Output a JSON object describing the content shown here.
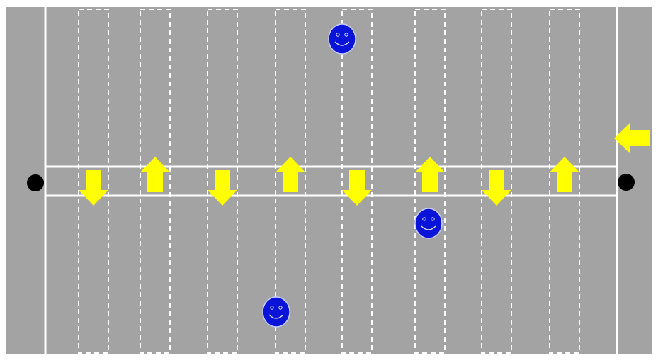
{
  "colors": {
    "background": "#a3a3a3",
    "lines": "#ffffff",
    "arrow": "#ffff00",
    "face": "#0a14d8",
    "dot": "#000000"
  },
  "lane_arrows": [
    "down",
    "up",
    "down",
    "up",
    "down",
    "up",
    "down",
    "up"
  ],
  "side_arrow": "left",
  "icons": {
    "arrow": "arrow-icon",
    "face": "smiley-face-icon",
    "dot": "black-dot-icon"
  }
}
